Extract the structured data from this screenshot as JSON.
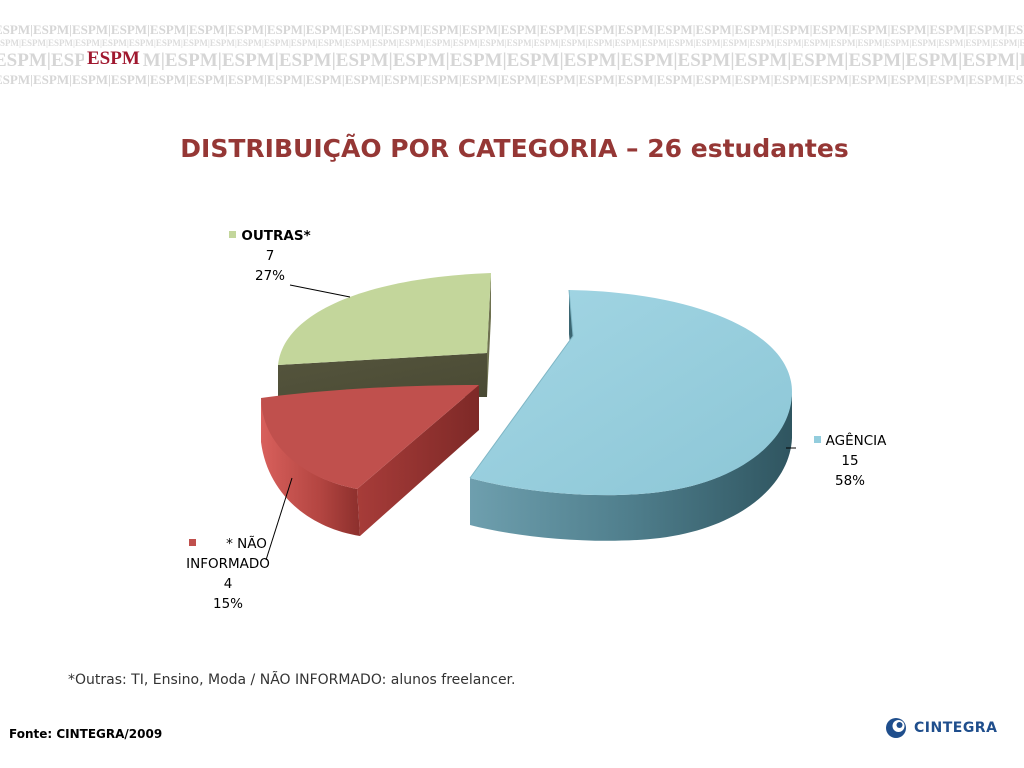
{
  "banner": {
    "word": "ESPM",
    "logo": "ESPM"
  },
  "title": "DISTRIBUIÇÃO POR CATEGORIA – 26 estudantes",
  "chart_data": {
    "type": "pie",
    "title": "DISTRIBUIÇÃO POR CATEGORIA – 26 estudantes",
    "style": "3d-exploded",
    "total": 26,
    "slices": [
      {
        "label": "AGÊNCIA",
        "value": 15,
        "percent": "58%",
        "color": "#93cddd"
      },
      {
        "label": "* NÃO INFORMADO",
        "value": 4,
        "percent": "15%",
        "color": "#c0504d"
      },
      {
        "label": "OUTRAS*",
        "value": 7,
        "percent": "27%",
        "color": "#c3d69b"
      }
    ],
    "labels": {
      "agencia": {
        "name": "AGÊNCIA",
        "value": "15",
        "percent": "58%"
      },
      "nao_informado": {
        "name_line1": "* NÃO",
        "name_line2": "INFORMADO",
        "value": "4",
        "percent": "15%"
      },
      "outras": {
        "name": "OUTRAS*",
        "value": "7",
        "percent": "27%"
      }
    }
  },
  "footnote": "*Outras:  TI, Ensino, Moda / NÃO INFORMADO: alunos freelancer.",
  "source": "Fonte: CINTEGRA/2009",
  "logo": {
    "text": "CINTEGRA",
    "color": "#1f4e8c"
  }
}
